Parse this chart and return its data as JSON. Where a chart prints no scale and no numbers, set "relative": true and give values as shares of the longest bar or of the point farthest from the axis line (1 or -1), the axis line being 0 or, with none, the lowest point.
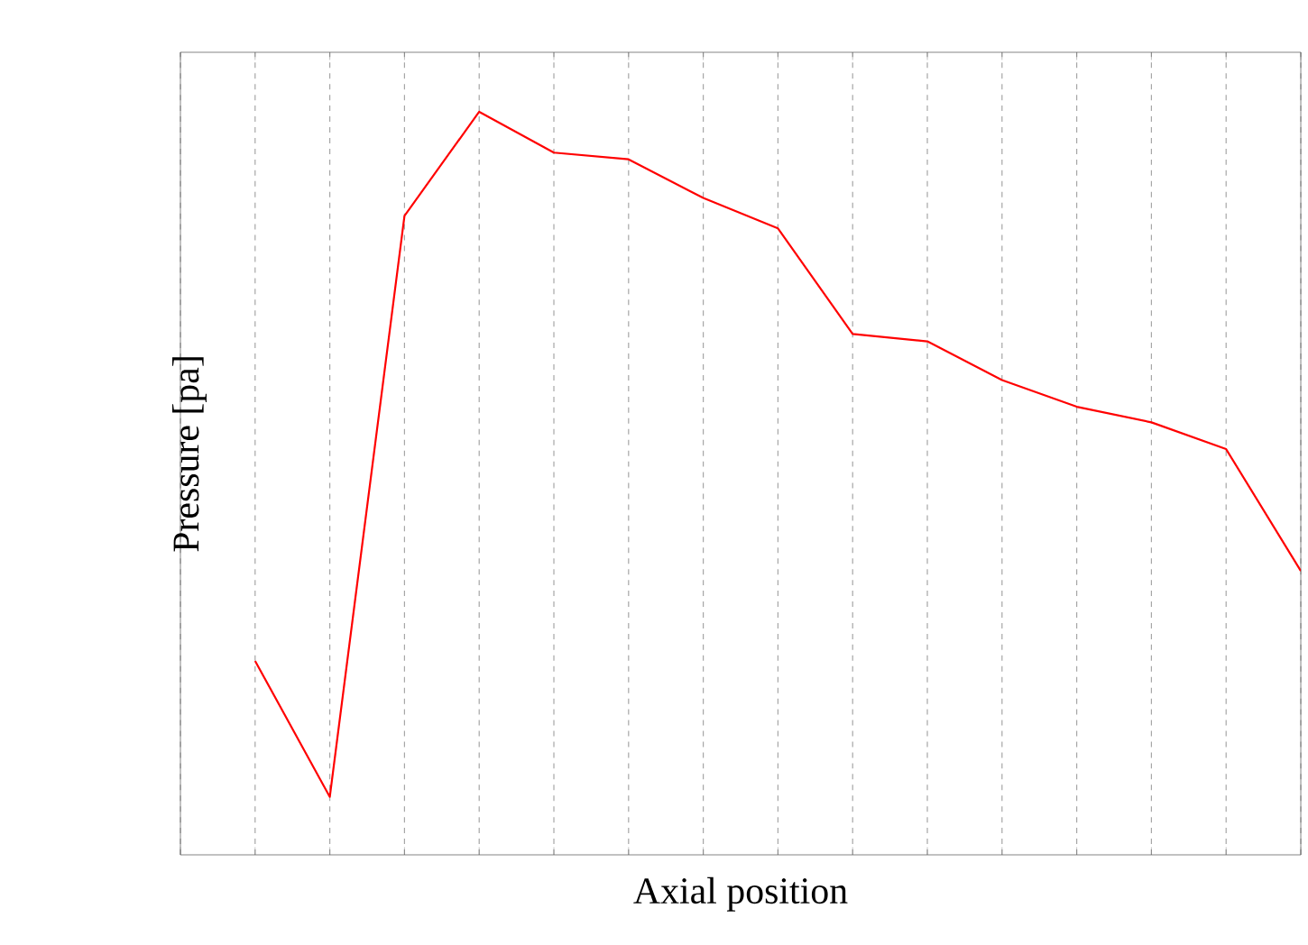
{
  "chart_data": {
    "type": "line",
    "relative": true,
    "xlabel": "Axial position",
    "ylabel": "Pressure [pa]",
    "categories": [
      null,
      null,
      null,
      null,
      null,
      null,
      null,
      null,
      null,
      null,
      null,
      null,
      null,
      null,
      null,
      null
    ],
    "series": [
      {
        "color": "#ff0000",
        "values": [
          null,
          0.261,
          0.078,
          0.86,
          1,
          0.945,
          0.936,
          0.884,
          0.843,
          0.701,
          0.691,
          0.639,
          0.603,
          0.582,
          0.546,
          0.382
        ]
      }
    ],
    "grid": "x",
    "marker": "none",
    "line_style": "solid"
  }
}
